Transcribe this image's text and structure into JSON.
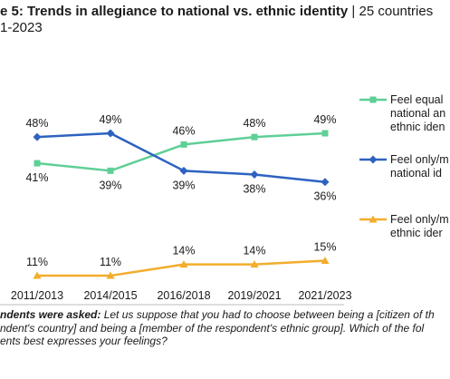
{
  "header": {
    "title": "e 5: Trends in allegiance to national vs. ethnic identity",
    "separator": " | ",
    "subtitle": "25 countries",
    "years": "1-2023"
  },
  "chart_data": {
    "type": "line",
    "categories": [
      "2011/2013",
      "2014/2015",
      "2016/2018",
      "2019/2021",
      "2021/2023"
    ],
    "series": [
      {
        "name": "Feel equal national and ethnic iden",
        "legend_lines": [
          "Feel equal",
          "national an",
          "ethnic iden"
        ],
        "values": [
          41,
          39,
          46,
          48,
          49
        ],
        "labels": [
          "41%",
          "39%",
          "46%",
          "48%",
          "49%"
        ],
        "color": "#5ecf96",
        "marker": "square"
      },
      {
        "name": "Feel only/m national id",
        "legend_lines": [
          "Feel only/m",
          "national id"
        ],
        "values": [
          48,
          49,
          39,
          38,
          36
        ],
        "labels": [
          "48%",
          "49%",
          "39%",
          "38%",
          "36%"
        ],
        "color": "#2e62c0",
        "marker": "diamond"
      },
      {
        "name": "Feel only/m ethnic ider",
        "legend_lines": [
          "Feel only/m",
          "ethnic ider"
        ],
        "values": [
          11,
          11,
          14,
          14,
          15
        ],
        "labels": [
          "11%",
          "11%",
          "14%",
          "14%",
          "15%"
        ],
        "color": "#f2ad2c",
        "marker": "triangle"
      }
    ],
    "ylim": [
      0,
      60
    ],
    "grid": false,
    "legend_position": "right"
  },
  "note": {
    "lead": "ndents were asked:",
    "body_line1": " Let us suppose that you had to choose between being a [citizen of th",
    "line2": "ndent's country] and being a [member of the respondent's ethnic group]. Which of the fol",
    "line3": "ents best expresses your feelings?"
  }
}
